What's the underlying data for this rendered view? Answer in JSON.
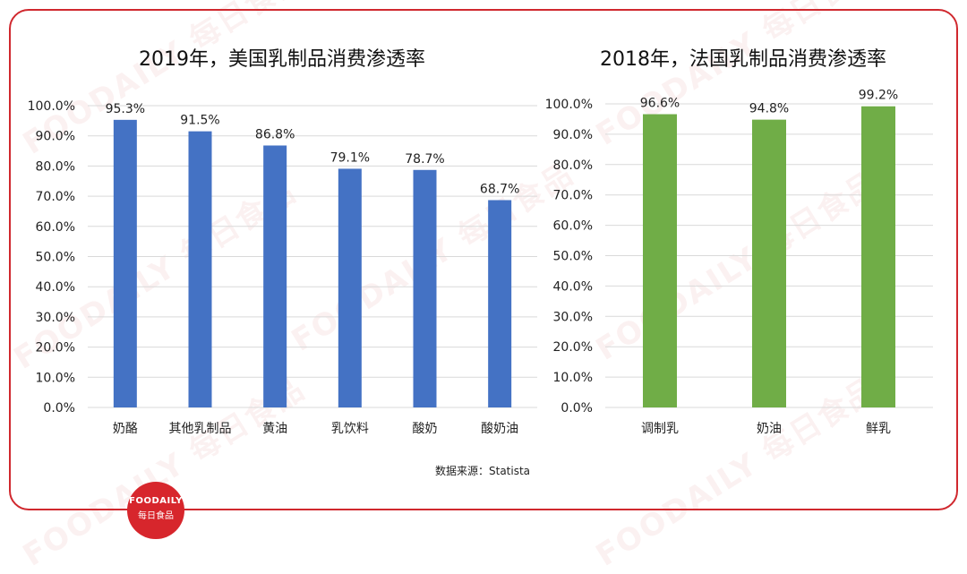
{
  "brand": {
    "watermark_text": "FOODAILY 每日食品",
    "logo_line1": "FOODAILY",
    "logo_line2": "每日食品",
    "accent_color": "#d0282e"
  },
  "source_note": "数据来源：Statista",
  "chart_data": [
    {
      "type": "bar",
      "title": "2019年，美国乳制品消费渗透率",
      "categories": [
        "奶酪",
        "其他乳制品",
        "黄油",
        "乳饮料",
        "酸奶",
        "酸奶油"
      ],
      "values": [
        95.3,
        91.5,
        86.8,
        79.1,
        78.7,
        68.7
      ],
      "value_labels": [
        "95.3%",
        "91.5%",
        "86.8%",
        "79.1%",
        "78.7%",
        "68.7%"
      ],
      "yticks": [
        "0.0%",
        "10.0%",
        "20.0%",
        "30.0%",
        "40.0%",
        "50.0%",
        "60.0%",
        "70.0%",
        "80.0%",
        "90.0%",
        "100.0%"
      ],
      "ylim": [
        0,
        100
      ],
      "grid": true,
      "color": "#4472c4"
    },
    {
      "type": "bar",
      "title": "2018年，法国乳制品消费渗透率",
      "categories": [
        "调制乳",
        "奶油",
        "鲜乳"
      ],
      "values": [
        96.6,
        94.8,
        99.2
      ],
      "value_labels": [
        "96.6%",
        "94.8%",
        "99.2%"
      ],
      "yticks": [
        "0.0%",
        "10.0%",
        "20.0%",
        "30.0%",
        "40.0%",
        "50.0%",
        "60.0%",
        "70.0%",
        "80.0%",
        "90.0%",
        "100.0%"
      ],
      "ylim": [
        0,
        100
      ],
      "grid": true,
      "color": "#70ad47"
    }
  ]
}
